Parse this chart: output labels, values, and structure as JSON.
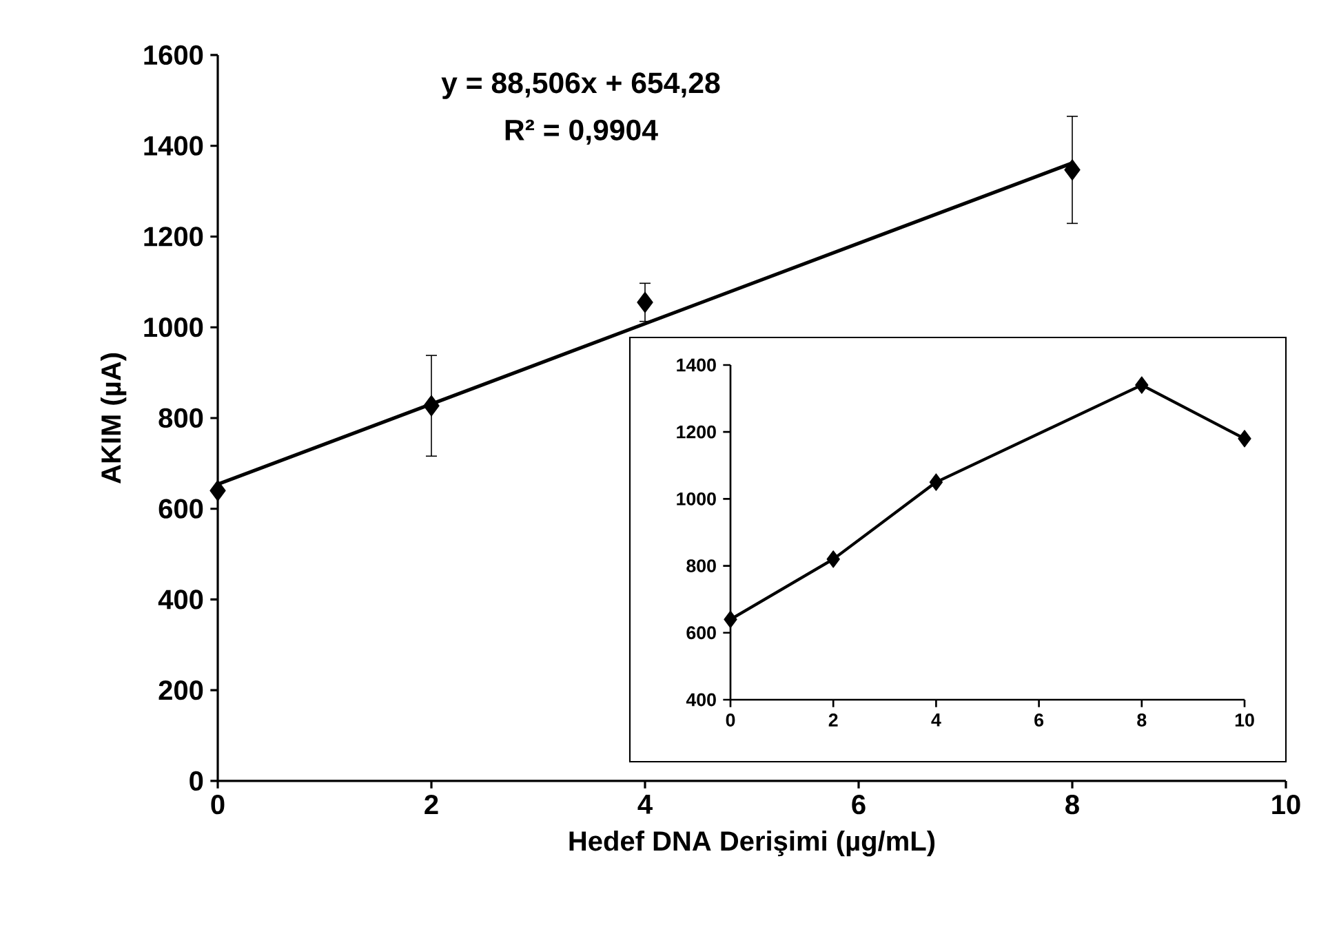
{
  "chart_data": [
    {
      "type": "scatter",
      "x": [
        0,
        2,
        4,
        8
      ],
      "series": [
        {
          "type": "scatter",
          "color": "#000000",
          "marker": "diamond",
          "values": [
            640,
            827,
            1055,
            1347
          ],
          "errors": [
            null,
            111,
            42,
            118
          ]
        },
        {
          "type": "line",
          "color": "#000000",
          "marker": "none",
          "x": [
            0,
            8
          ],
          "values": [
            654,
            1362
          ]
        }
      ],
      "xlabel": "Hedef DNA Derişimi (µg/mL)",
      "ylabel": "AKIM (µA)",
      "annotations": [
        "y = 88,506x + 654,28",
        "R² = 0,9904"
      ],
      "xlim": [
        0,
        10
      ],
      "ylim": [
        0,
        1600
      ],
      "xticks": [
        0,
        2,
        4,
        6,
        8,
        10
      ],
      "yticks": [
        0,
        200,
        400,
        600,
        800,
        1000,
        1200,
        1400,
        1600
      ],
      "grid": false
    },
    {
      "type": "line",
      "x": [
        0,
        2,
        4,
        8,
        10
      ],
      "series": [
        {
          "color": "#000000",
          "values": [
            640,
            820,
            1050,
            1340,
            1180
          ]
        }
      ],
      "marker": "diamond",
      "xlim": [
        0,
        10
      ],
      "ylim": [
        400,
        1400
      ],
      "xticks": [
        0,
        2,
        4,
        6,
        8,
        10
      ],
      "yticks": [
        400,
        600,
        800,
        1000,
        1200,
        1400
      ],
      "grid": false
    }
  ]
}
